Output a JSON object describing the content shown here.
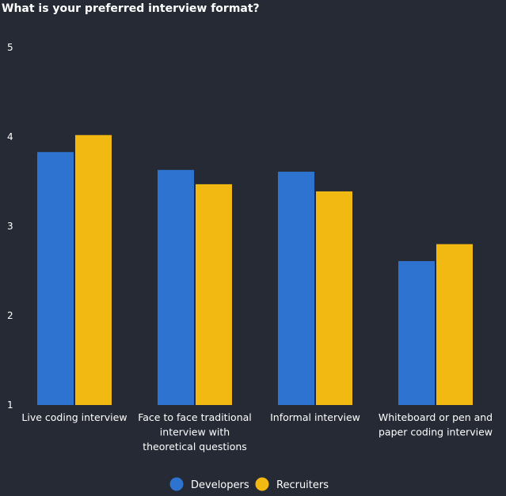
{
  "chart_data": {
    "type": "bar",
    "title": "What is your preferred interview format?",
    "categories": [
      [
        "Live coding interview"
      ],
      [
        "Face to face traditional",
        "interview with",
        "theoretical questions"
      ],
      [
        "Informal interview"
      ],
      [
        "Whiteboard or pen and",
        "paper coding interview"
      ]
    ],
    "series": [
      {
        "name": "Developers",
        "color": "#2f73d0",
        "values": [
          3.83,
          3.63,
          3.61,
          2.61
        ]
      },
      {
        "name": "Recruiters",
        "color": "#f2b912",
        "values": [
          4.02,
          3.47,
          3.39,
          2.8
        ]
      }
    ],
    "ylim": [
      1,
      5
    ],
    "yticks": [
      "1",
      "2",
      "3",
      "4",
      "5"
    ],
    "xlabel": "",
    "ylabel": "",
    "grid": false,
    "legend_position": "bottom-center"
  }
}
